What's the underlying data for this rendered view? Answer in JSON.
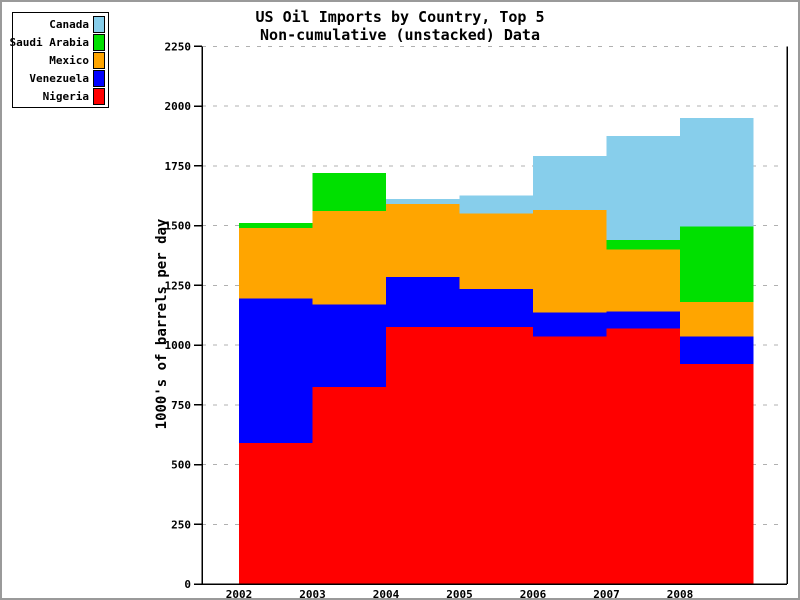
{
  "chart_data": {
    "type": "area",
    "variant": "non-cumulative overlapping step areas (unstacked), drawn back-to-front in legend order",
    "title": "US Oil Imports by Country, Top 5",
    "subtitle": "Non-cumulative (unstacked) Data",
    "ylabel": "1000's of barrels per day",
    "categories": [
      "2002",
      "2003",
      "2004",
      "2005",
      "2006",
      "2007",
      "2008"
    ],
    "series": [
      {
        "name": "Canada",
        "color": "#87CEEB",
        "values": [
          null,
          null,
          1610,
          1625,
          1790,
          1875,
          1950
        ]
      },
      {
        "name": "Saudi Arabia",
        "color": "#00E000",
        "values": [
          1510,
          1720,
          null,
          null,
          null,
          1440,
          1495
        ]
      },
      {
        "name": "Mexico",
        "color": "#FFA500",
        "values": [
          1490,
          1560,
          1590,
          1550,
          1565,
          1400,
          1180
        ]
      },
      {
        "name": "Venezuela",
        "color": "#0000FF",
        "values": [
          1195,
          1170,
          1285,
          1235,
          1135,
          1140,
          1035
        ]
      },
      {
        "name": "Nigeria",
        "color": "#FF0000",
        "values": [
          590,
          825,
          1075,
          1075,
          1035,
          1070,
          920
        ]
      }
    ],
    "yticks": [
      0,
      250,
      500,
      750,
      1000,
      1250,
      1500,
      1750,
      2000,
      2250
    ],
    "ylim": [
      0,
      2250
    ],
    "grid": "dashed horizontal gridlines at every y tick",
    "legend_position": "top-left",
    "note_nulls": "null = value hidden behind larger overlapping series in the image"
  }
}
